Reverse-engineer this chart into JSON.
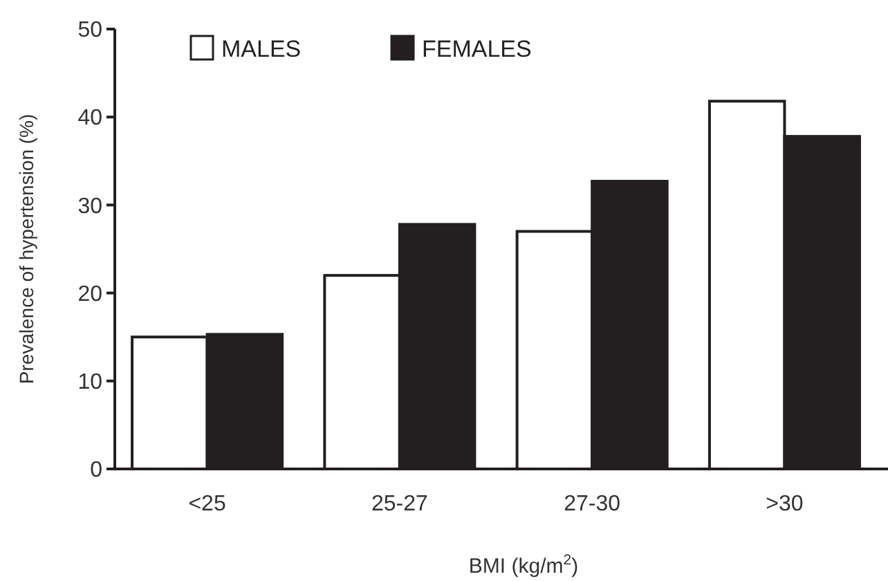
{
  "chart_data": {
    "type": "bar",
    "xlabel": "BMI (kg/m$^{2}$)",
    "ylabel": "Prevalence of hypertension (%)",
    "categories": [
      "<25",
      "25-27",
      "27-30",
      ">30"
    ],
    "series": [
      {
        "name": "MALES",
        "color": "#ffffff",
        "values": [
          15,
          22,
          27,
          41.8
        ]
      },
      {
        "name": "FEMALES",
        "color": "#231f20",
        "values": [
          15.3,
          27.8,
          32.7,
          37.8
        ]
      }
    ],
    "ylim": [
      0,
      50
    ],
    "yticks": [
      0,
      10,
      20,
      30,
      40,
      50
    ],
    "grid": false,
    "legend": "top left"
  }
}
